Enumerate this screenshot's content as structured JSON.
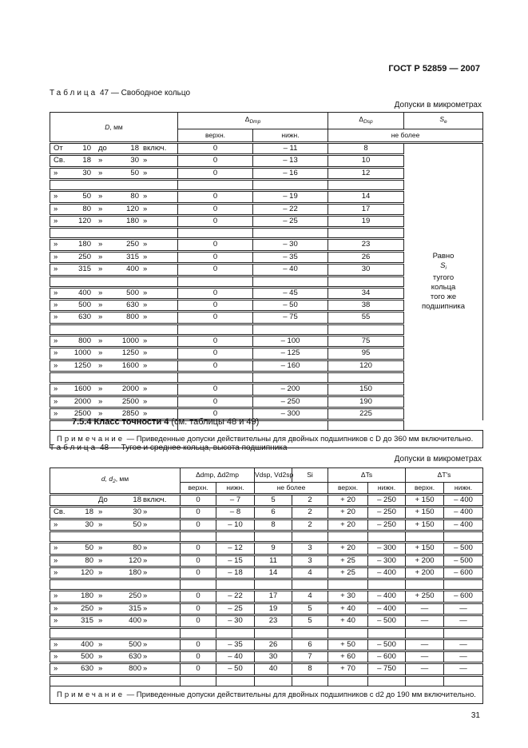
{
  "header": {
    "doc_code": "ГОСТ Р 52859 — 2007"
  },
  "t47": {
    "caption_label": "Таблица",
    "caption_rest": "47 — Свободное кольцо",
    "units": "Допуски в микрометрах",
    "h_D": "D",
    "h_D_unit": ", мм",
    "h_delta": "Δ",
    "h_Dmp_sub": "Dmp",
    "h_Dsp_sub": "Dsp",
    "h_S": "S",
    "h_Se_sub": "e",
    "h_upper": "верхн.",
    "h_lower": "нижн.",
    "h_max": "не более",
    "groups": [
      [
        [
          [
            "От",
            "10",
            "до",
            "18",
            "включ."
          ],
          "0",
          "– 11",
          "8"
        ],
        [
          [
            "Св.",
            "18",
            "»",
            "30",
            "»"
          ],
          "0",
          "– 13",
          "10"
        ],
        [
          [
            "»",
            "30",
            "»",
            "50",
            "»"
          ],
          "0",
          "– 16",
          "12"
        ]
      ],
      [
        [
          [
            "»",
            "50",
            "»",
            "80",
            "»"
          ],
          "0",
          "– 19",
          "14"
        ],
        [
          [
            "»",
            "80",
            "»",
            "120",
            "»"
          ],
          "0",
          "– 22",
          "17"
        ],
        [
          [
            "»",
            "120",
            "»",
            "180",
            "»"
          ],
          "0",
          "– 25",
          "19"
        ]
      ],
      [
        [
          [
            "»",
            "180",
            "»",
            "250",
            "»"
          ],
          "0",
          "– 30",
          "23"
        ],
        [
          [
            "»",
            "250",
            "»",
            "315",
            "»"
          ],
          "0",
          "– 35",
          "26"
        ],
        [
          [
            "»",
            "315",
            "»",
            "400",
            "»"
          ],
          "0",
          "– 40",
          "30"
        ]
      ],
      [
        [
          [
            "»",
            "400",
            "»",
            "500",
            "»"
          ],
          "0",
          "– 45",
          "34"
        ],
        [
          [
            "»",
            "500",
            "»",
            "630",
            "»"
          ],
          "0",
          "– 50",
          "38"
        ],
        [
          [
            "»",
            "630",
            "»",
            "800",
            "»"
          ],
          "0",
          "– 75",
          "55"
        ]
      ],
      [
        [
          [
            "»",
            "800",
            "»",
            "1000",
            "»"
          ],
          "0",
          "– 100",
          "75"
        ],
        [
          [
            "»",
            "1000",
            "»",
            "1250",
            "»"
          ],
          "0",
          "– 125",
          "95"
        ],
        [
          [
            "»",
            "1250",
            "»",
            "1600",
            "»"
          ],
          "0",
          "– 160",
          "120"
        ]
      ],
      [
        [
          [
            "»",
            "1600",
            "»",
            "2000",
            "»"
          ],
          "0",
          "– 200",
          "150"
        ],
        [
          [
            "»",
            "2000",
            "»",
            "2500",
            "»"
          ],
          "0",
          "– 250",
          "190"
        ],
        [
          [
            "»",
            "2500",
            "»",
            "2850",
            "»"
          ],
          "0",
          "– 300",
          "225"
        ]
      ]
    ],
    "se_note": [
      "Равно",
      "S",
      "i",
      "тугого",
      "кольца",
      "того же",
      "подшипника"
    ],
    "note_label": "Примечание",
    "note_text": " — Приведенные допуски действительны для двойных подшипников с D до 360 мм включительно."
  },
  "section": {
    "number": "7.5.4",
    "title": "Класс точности 4",
    "ref": " (см. таблицы 48 и 49)"
  },
  "t48": {
    "caption_label": "Таблица",
    "caption_rest": "48 — Тугое и среднее кольца, высота подшипника",
    "units": "Допуски в микрометрах",
    "h_d": "d, d",
    "h_d_sub": "2",
    "h_d_unit": ", мм",
    "h_dmp": "Δdmp, Δd2mp",
    "h_V": "Vdsp, Vd2sp",
    "h_Si": "Si",
    "h_Ts": "ΔTs",
    "h_T1s": "ΔT's",
    "h_upper": "верхн.",
    "h_lower": "нижн.",
    "h_max": "не более",
    "groups": [
      [
        [
          [
            "",
            "",
            "До",
            "18",
            "включ."
          ],
          "0",
          "– 7",
          "5",
          "2",
          "+ 20",
          "– 250",
          "+ 150",
          "– 400"
        ],
        [
          [
            "Св.",
            "18",
            "»",
            "30",
            "»"
          ],
          "0",
          "– 8",
          "6",
          "2",
          "+ 20",
          "– 250",
          "+ 150",
          "– 400"
        ],
        [
          [
            "»",
            "30",
            "»",
            "50",
            "»"
          ],
          "0",
          "– 10",
          "8",
          "2",
          "+ 20",
          "– 250",
          "+ 150",
          "– 400"
        ]
      ],
      [
        [
          [
            "»",
            "50",
            "»",
            "80",
            "»"
          ],
          "0",
          "– 12",
          "9",
          "3",
          "+ 20",
          "– 300",
          "+ 150",
          "– 500"
        ],
        [
          [
            "»",
            "80",
            "»",
            "120",
            "»"
          ],
          "0",
          "– 15",
          "11",
          "3",
          "+ 25",
          "– 300",
          "+ 200",
          "– 500"
        ],
        [
          [
            "»",
            "120",
            "»",
            "180",
            "»"
          ],
          "0",
          "– 18",
          "14",
          "4",
          "+ 25",
          "– 400",
          "+ 200",
          "– 600"
        ]
      ],
      [
        [
          [
            "»",
            "180",
            "»",
            "250",
            "»"
          ],
          "0",
          "– 22",
          "17",
          "4",
          "+ 30",
          "– 400",
          "+ 250",
          "– 600"
        ],
        [
          [
            "»",
            "250",
            "»",
            "315",
            "»"
          ],
          "0",
          "– 25",
          "19",
          "5",
          "+ 40",
          "– 400",
          "—",
          "—"
        ],
        [
          [
            "»",
            "315",
            "»",
            "400",
            "»"
          ],
          "0",
          "– 30",
          "23",
          "5",
          "+ 40",
          "– 500",
          "—",
          "—"
        ]
      ],
      [
        [
          [
            "»",
            "400",
            "»",
            "500",
            "»"
          ],
          "0",
          "– 35",
          "26",
          "6",
          "+ 50",
          "– 500",
          "—",
          "—"
        ],
        [
          [
            "»",
            "500",
            "»",
            "630",
            "»"
          ],
          "0",
          "– 40",
          "30",
          "7",
          "+ 60",
          "– 600",
          "—",
          "—"
        ],
        [
          [
            "»",
            "630",
            "»",
            "800",
            "»"
          ],
          "0",
          "– 50",
          "40",
          "8",
          "+ 70",
          "– 750",
          "—",
          "—"
        ]
      ]
    ],
    "note_label": "Примечание",
    "note_text": " — Приведенные допуски действительны для двойных подшипников с d2 до 190 мм включительно."
  },
  "footer": {
    "page_number": "31"
  }
}
